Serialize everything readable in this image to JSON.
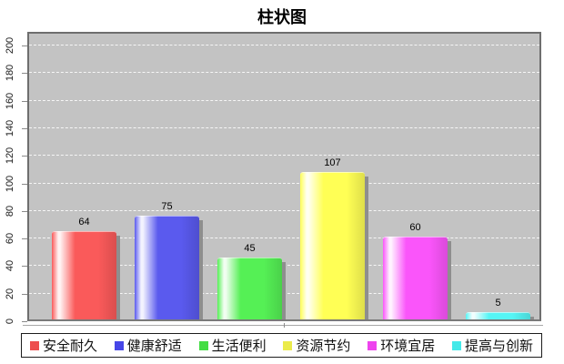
{
  "title": "柱状图",
  "chart_data": {
    "type": "bar",
    "title": "柱状图",
    "categories": [
      "安全耐久",
      "健康舒适",
      "生活便利",
      "资源节约",
      "环境宜居",
      "提高与创新"
    ],
    "values": [
      64,
      75,
      45,
      107,
      60,
      5
    ],
    "value_labels_shown": true,
    "bar_colors": [
      "#fa5a5a",
      "#5a5aee",
      "#55f055",
      "#ffff55",
      "#fa55fa",
      "#55f5f5"
    ],
    "legend_colors": [
      "#ed4e4e",
      "#4646e8",
      "#44dd44",
      "#ebeb4b",
      "#ee44ee",
      "#44e9e9"
    ],
    "xlabel": "",
    "ylabel": "",
    "yticks": [
      0,
      20,
      40,
      60,
      80,
      100,
      120,
      140,
      160,
      180,
      200
    ],
    "ylim": [
      0,
      200
    ],
    "grid": "horizontal white dashed",
    "plot_background": "#c3c3c3",
    "legend_position": "bottom"
  }
}
